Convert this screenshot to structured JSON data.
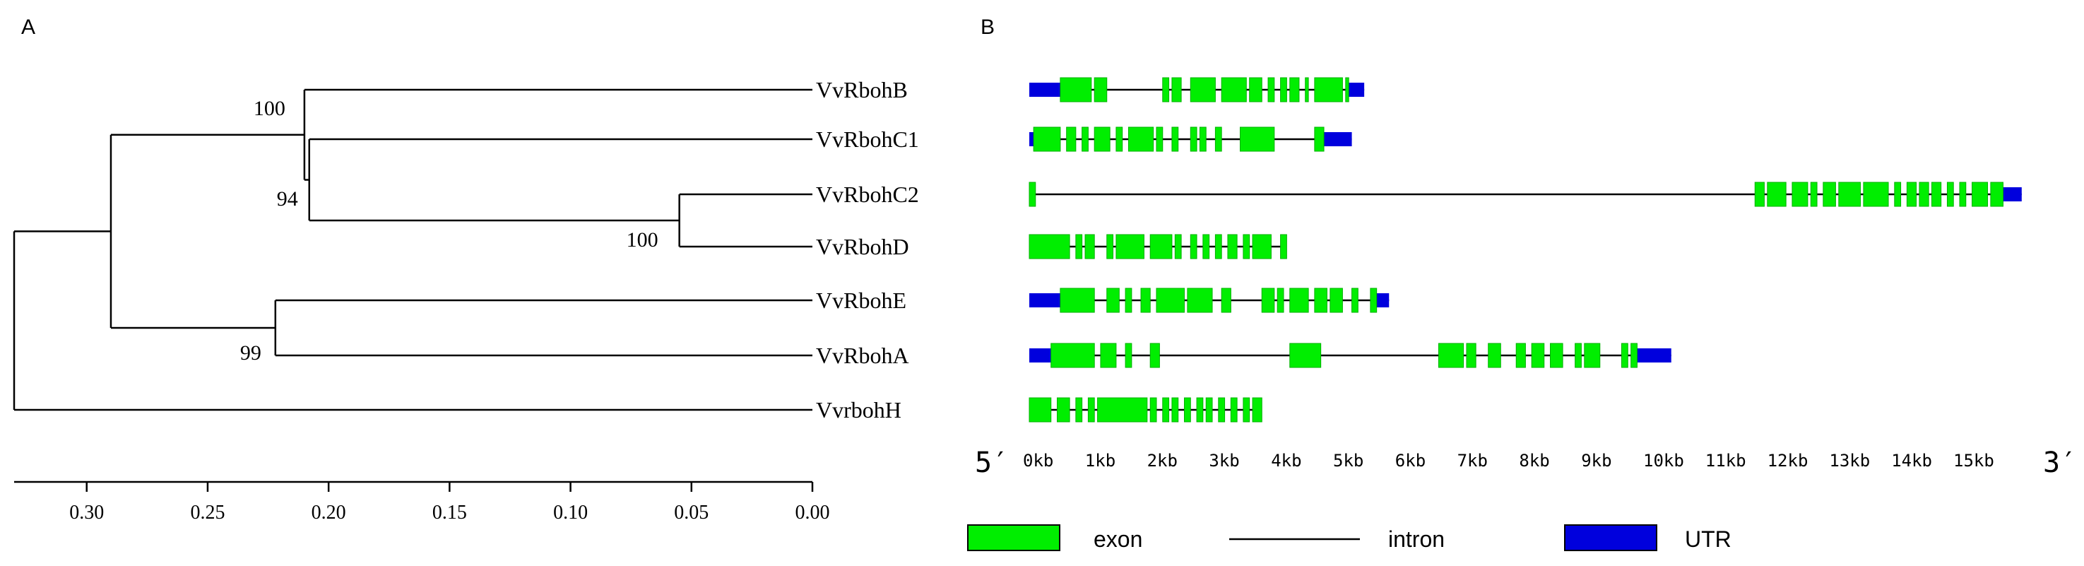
{
  "panels": {
    "a_label": "A",
    "b_label": "B"
  },
  "colors": {
    "exon": "#00ee00",
    "exon_stroke": "#00b000",
    "utr": "#0000dd",
    "line": "#000000"
  },
  "tree": {
    "taxa": [
      "VvRbohB",
      "VvRbohC1",
      "VvRbohC2",
      "VvRbohD",
      "VvRbohE",
      "VvRbohA",
      "VvrbohH"
    ],
    "root_age": 0.33,
    "clades": [
      {
        "id": "n1",
        "age": 0.29,
        "children": [
          "n2",
          "n5"
        ]
      },
      {
        "id": "n2",
        "age": 0.21,
        "children": [
          "VvRbohB",
          "n3"
        ],
        "bootstrap": "100"
      },
      {
        "id": "n3",
        "age": 0.208,
        "children": [
          "VvRbohC1",
          "n4"
        ],
        "bootstrap": "94"
      },
      {
        "id": "n4",
        "age": 0.055,
        "children": [
          "VvRbohC2",
          "VvRbohD"
        ],
        "bootstrap": "100"
      },
      {
        "id": "n5",
        "age": 0.222,
        "children": [
          "VvRbohE",
          "VvRbohA"
        ],
        "bootstrap": "99"
      }
    ],
    "scale": {
      "ticks": [
        0.3,
        0.25,
        0.2,
        0.15,
        0.1,
        0.05,
        0.0
      ],
      "tick_labels": [
        "0.30",
        "0.25",
        "0.20",
        "0.15",
        "0.10",
        "0.05",
        "0.00"
      ],
      "range": [
        0.33,
        0.0
      ]
    }
  },
  "genes": [
    {
      "name": "VvRbohB",
      "length_kb": 5.4,
      "utr": [
        [
          0.0,
          0.5
        ],
        [
          5.15,
          5.4
        ]
      ],
      "exons": [
        [
          0.5,
          1.0
        ],
        [
          1.05,
          1.25
        ],
        [
          2.15,
          2.25
        ],
        [
          2.3,
          2.45
        ],
        [
          2.6,
          3.0
        ],
        [
          3.1,
          3.5
        ],
        [
          3.55,
          3.75
        ],
        [
          3.85,
          3.95
        ],
        [
          4.05,
          4.15
        ],
        [
          4.2,
          4.35
        ],
        [
          4.45,
          4.5
        ],
        [
          4.6,
          5.05
        ],
        [
          5.1,
          5.15
        ]
      ]
    },
    {
      "name": "VvRbohC1",
      "length_kb": 5.2,
      "utr": [
        [
          0.0,
          0.07
        ],
        [
          4.75,
          5.2
        ]
      ],
      "exons": [
        [
          0.07,
          0.5
        ],
        [
          0.6,
          0.75
        ],
        [
          0.85,
          0.95
        ],
        [
          1.05,
          1.3
        ],
        [
          1.4,
          1.5
        ],
        [
          1.6,
          2.0
        ],
        [
          2.05,
          2.15
        ],
        [
          2.3,
          2.4
        ],
        [
          2.6,
          2.7
        ],
        [
          2.75,
          2.85
        ],
        [
          3.0,
          3.1
        ],
        [
          3.4,
          3.95
        ],
        [
          4.6,
          4.75
        ]
      ]
    },
    {
      "name": "VvRbohC2",
      "length_kb": 16.0,
      "utr": [
        [
          15.7,
          16.0
        ]
      ],
      "exons": [
        [
          0.0,
          0.1
        ],
        [
          11.7,
          11.85
        ],
        [
          11.9,
          12.2
        ],
        [
          12.3,
          12.55
        ],
        [
          12.6,
          12.7
        ],
        [
          12.8,
          13.0
        ],
        [
          13.05,
          13.4
        ],
        [
          13.45,
          13.85
        ],
        [
          13.95,
          14.05
        ],
        [
          14.15,
          14.3
        ],
        [
          14.35,
          14.5
        ],
        [
          14.55,
          14.7
        ],
        [
          14.8,
          14.9
        ],
        [
          15.0,
          15.1
        ],
        [
          15.2,
          15.45
        ],
        [
          15.5,
          15.7
        ]
      ]
    },
    {
      "name": "VvRbohD",
      "length_kb": 4.15,
      "utr": [],
      "exons": [
        [
          0.0,
          0.65
        ],
        [
          0.75,
          0.85
        ],
        [
          0.9,
          1.05
        ],
        [
          1.25,
          1.35
        ],
        [
          1.4,
          1.85
        ],
        [
          1.95,
          2.3
        ],
        [
          2.35,
          2.45
        ],
        [
          2.6,
          2.7
        ],
        [
          2.8,
          2.9
        ],
        [
          3.0,
          3.1
        ],
        [
          3.2,
          3.35
        ],
        [
          3.45,
          3.55
        ],
        [
          3.6,
          3.9
        ],
        [
          4.05,
          4.15
        ]
      ]
    },
    {
      "name": "VvRbohE",
      "length_kb": 5.8,
      "utr": [
        [
          0.0,
          0.5
        ],
        [
          5.6,
          5.8
        ]
      ],
      "exons": [
        [
          0.5,
          1.05
        ],
        [
          1.25,
          1.45
        ],
        [
          1.55,
          1.65
        ],
        [
          1.8,
          1.95
        ],
        [
          2.05,
          2.5
        ],
        [
          2.55,
          2.95
        ],
        [
          3.1,
          3.25
        ],
        [
          3.75,
          3.95
        ],
        [
          4.0,
          4.1
        ],
        [
          4.2,
          4.5
        ],
        [
          4.6,
          4.8
        ],
        [
          4.85,
          5.05
        ],
        [
          5.2,
          5.3
        ],
        [
          5.5,
          5.6
        ]
      ]
    },
    {
      "name": "VvRbohA",
      "length_kb": 10.35,
      "utr": [
        [
          0.0,
          0.35
        ],
        [
          9.8,
          10.35
        ]
      ],
      "exons": [
        [
          0.35,
          1.05
        ],
        [
          1.15,
          1.4
        ],
        [
          1.55,
          1.65
        ],
        [
          1.95,
          2.1
        ],
        [
          4.2,
          4.7
        ],
        [
          6.6,
          7.0
        ],
        [
          7.05,
          7.2
        ],
        [
          7.4,
          7.6
        ],
        [
          7.85,
          8.0
        ],
        [
          8.1,
          8.3
        ],
        [
          8.4,
          8.6
        ],
        [
          8.8,
          8.9
        ],
        [
          8.95,
          9.2
        ],
        [
          9.55,
          9.65
        ],
        [
          9.7,
          9.8
        ]
      ]
    },
    {
      "name": "VvrbohH",
      "length_kb": 3.75,
      "utr": [],
      "exons": [
        [
          0.0,
          0.35
        ],
        [
          0.45,
          0.65
        ],
        [
          0.75,
          0.85
        ],
        [
          0.95,
          1.05
        ],
        [
          1.1,
          1.9
        ],
        [
          1.95,
          2.05
        ],
        [
          2.15,
          2.25
        ],
        [
          2.3,
          2.4
        ],
        [
          2.5,
          2.6
        ],
        [
          2.7,
          2.8
        ],
        [
          2.85,
          2.95
        ],
        [
          3.05,
          3.15
        ],
        [
          3.25,
          3.35
        ],
        [
          3.45,
          3.55
        ],
        [
          3.6,
          3.75
        ]
      ]
    }
  ],
  "axis": {
    "five_prime": "5′",
    "three_prime": "3′",
    "ticks_kb": [
      0,
      1,
      2,
      3,
      4,
      5,
      6,
      7,
      8,
      9,
      10,
      11,
      12,
      13,
      14,
      15
    ],
    "tick_labels": [
      "0kb",
      "1kb",
      "2kb",
      "3kb",
      "4kb",
      "5kb",
      "6kb",
      "7kb",
      "8kb",
      "9kb",
      "10kb",
      "11kb",
      "12kb",
      "13kb",
      "14kb",
      "15kb"
    ],
    "max_kb": 16.0
  },
  "legend": {
    "exon": "exon",
    "intron": "intron",
    "utr": "UTR"
  }
}
